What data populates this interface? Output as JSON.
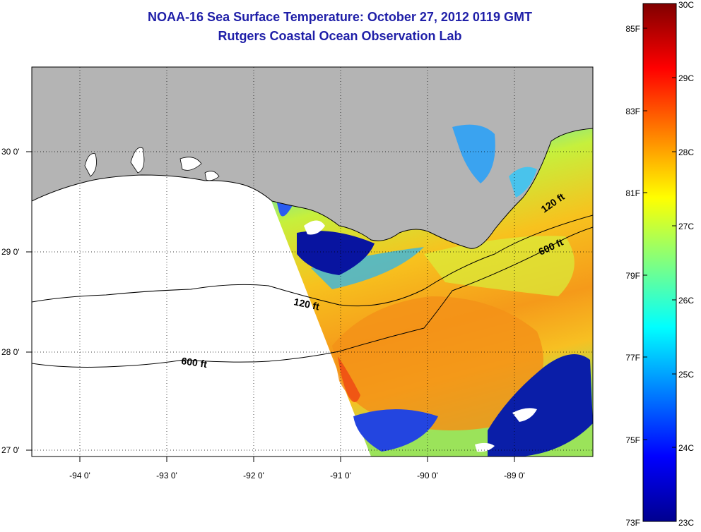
{
  "title": "NOAA-16 Sea Surface Temperature:  October 27, 2012 0119 GMT",
  "subtitle": "Rutgers Coastal Ocean Observation Lab",
  "map": {
    "x_ticks": [
      "-94 0'",
      "-93 0'",
      "-92 0'",
      "-91 0'",
      "-90 0'",
      "-89 0'"
    ],
    "y_ticks": [
      "30 0'",
      "29 0'",
      "28 0'",
      "27 0'"
    ],
    "contour_labels": [
      "120 ft",
      "600 ft",
      "120 ft",
      "600 ft"
    ],
    "land_color": "#b4b4b4",
    "no_data_color": "#ffffff"
  },
  "colorbar": {
    "left_labels": [
      "85F",
      "83F",
      "81F",
      "79F",
      "77F",
      "75F",
      "73F"
    ],
    "right_labels": [
      "30C",
      "29C",
      "28C",
      "27C",
      "26C",
      "25C",
      "24C",
      "23C"
    ],
    "colormap": "jet"
  }
}
